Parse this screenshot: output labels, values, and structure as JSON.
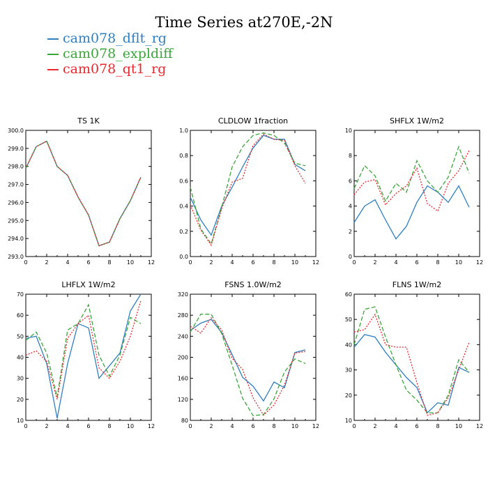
{
  "title": "Time Series at270E,-2N",
  "legend": [
    {
      "name": "cam078_dflt_rg",
      "color": "#2f7fbf",
      "dash": ""
    },
    {
      "name": "cam078_expldiff",
      "color": "#3aa63a",
      "dash": "6,3"
    },
    {
      "name": "cam078_qt1_rg",
      "color": "#e8282d",
      "dash": "2,2"
    }
  ],
  "chart_data": [
    {
      "type": "line",
      "title": "TS  1K",
      "xlim": [
        0,
        12
      ],
      "xticks": [
        0,
        2,
        4,
        6,
        8,
        10,
        12
      ],
      "ylim": [
        293,
        300
      ],
      "yticks": [
        "293.0",
        "294.0",
        "295.0",
        "296.0",
        "297.0",
        "298.0",
        "299.0",
        "300.0"
      ],
      "x": [
        0,
        1,
        2,
        3,
        4,
        5,
        6,
        7,
        8,
        9,
        10,
        11
      ],
      "series": [
        {
          "name": "cam078_dflt_rg",
          "values": [
            297.9,
            299.1,
            299.4,
            298.0,
            297.5,
            296.3,
            295.3,
            293.6,
            293.8,
            295.1,
            296.1,
            297.4
          ]
        },
        {
          "name": "cam078_expldiff",
          "values": [
            297.9,
            299.1,
            299.4,
            298.0,
            297.5,
            296.3,
            295.3,
            293.6,
            293.8,
            295.1,
            296.1,
            297.4
          ]
        },
        {
          "name": "cam078_qt1_rg",
          "values": [
            297.9,
            299.1,
            299.4,
            298.0,
            297.5,
            296.3,
            295.3,
            293.6,
            293.8,
            295.1,
            296.1,
            297.4
          ]
        }
      ]
    },
    {
      "type": "line",
      "title": "CLDLOW   1fraction",
      "xlim": [
        0,
        12
      ],
      "xticks": [
        0,
        2,
        4,
        6,
        8,
        10,
        12
      ],
      "ylim": [
        0,
        1
      ],
      "yticks": [
        "0.0",
        "0.2",
        "0.4",
        "0.6",
        "0.8",
        "1.0"
      ],
      "x": [
        0,
        1,
        2,
        3,
        4,
        5,
        6,
        7,
        8,
        9,
        10,
        11
      ],
      "series": [
        {
          "name": "cam078_dflt_rg",
          "values": [
            0.47,
            0.29,
            0.17,
            0.4,
            0.55,
            0.71,
            0.86,
            0.96,
            0.93,
            0.93,
            0.73,
            0.68
          ]
        },
        {
          "name": "cam078_expldiff",
          "values": [
            0.55,
            0.22,
            0.1,
            0.39,
            0.71,
            0.87,
            0.96,
            0.98,
            0.96,
            0.9,
            0.74,
            0.72
          ]
        },
        {
          "name": "cam078_qt1_rg",
          "values": [
            0.41,
            0.21,
            0.09,
            0.38,
            0.59,
            0.62,
            0.88,
            0.97,
            0.93,
            0.92,
            0.72,
            0.58
          ]
        }
      ]
    },
    {
      "type": "line",
      "title": "SHFLX   1W/m2",
      "xlim": [
        0,
        12
      ],
      "xticks": [
        0,
        2,
        4,
        6,
        8,
        10,
        12
      ],
      "ylim": [
        0,
        10
      ],
      "yticks": [
        "0",
        "2",
        "4",
        "6",
        "8",
        "10"
      ],
      "x": [
        0,
        1,
        2,
        3,
        4,
        5,
        6,
        7,
        8,
        9,
        10,
        11
      ],
      "series": [
        {
          "name": "cam078_dflt_rg",
          "values": [
            2.7,
            4.0,
            4.5,
            2.9,
            1.4,
            2.4,
            4.3,
            5.6,
            5.1,
            4.3,
            5.6,
            3.9
          ]
        },
        {
          "name": "cam078_expldiff",
          "values": [
            5.4,
            7.2,
            6.4,
            4.4,
            5.8,
            5.1,
            7.6,
            6.0,
            5.1,
            6.3,
            8.7,
            6.6
          ]
        },
        {
          "name": "cam078_qt1_rg",
          "values": [
            4.9,
            5.9,
            6.1,
            4.1,
            5.0,
            5.6,
            7.0,
            4.2,
            3.6,
            5.8,
            6.8,
            8.4
          ]
        }
      ]
    },
    {
      "type": "line",
      "title": "LHFLX   1W/m2",
      "xlim": [
        0,
        12
      ],
      "xticks": [
        0,
        2,
        4,
        6,
        8,
        10,
        12
      ],
      "ylim": [
        10,
        70
      ],
      "yticks": [
        "10",
        "20",
        "30",
        "40",
        "50",
        "60",
        "70"
      ],
      "x": [
        0,
        1,
        2,
        3,
        4,
        5,
        6,
        7,
        8,
        9,
        10,
        11
      ],
      "series": [
        {
          "name": "cam078_dflt_rg",
          "values": [
            49,
            50,
            37,
            11,
            37,
            56,
            54,
            30,
            36,
            42,
            62,
            70
          ]
        },
        {
          "name": "cam078_expldiff",
          "values": [
            48,
            52,
            42,
            21,
            53,
            56,
            65,
            41,
            31,
            41,
            59,
            56
          ]
        },
        {
          "name": "cam078_qt1_rg",
          "values": [
            41,
            43,
            38,
            20,
            49,
            56,
            60,
            35,
            30,
            38,
            50,
            67
          ]
        }
      ]
    },
    {
      "type": "line",
      "title": "FSNS   1.0W/m2",
      "xlim": [
        0,
        12
      ],
      "xticks": [
        0,
        2,
        4,
        6,
        8,
        10,
        12
      ],
      "ylim": [
        80,
        320
      ],
      "yticks": [
        "80",
        "120",
        "160",
        "200",
        "240",
        "280",
        "320"
      ],
      "x": [
        0,
        1,
        2,
        3,
        4,
        5,
        6,
        7,
        8,
        9,
        10,
        11
      ],
      "series": [
        {
          "name": "cam078_dflt_rg",
          "values": [
            251,
            265,
            272,
            247,
            205,
            162,
            145,
            117,
            153,
            142,
            209,
            214
          ]
        },
        {
          "name": "cam078_expldiff",
          "values": [
            248,
            282,
            282,
            245,
            185,
            122,
            89,
            91,
            121,
            172,
            197,
            188
          ]
        },
        {
          "name": "cam078_qt1_rg",
          "values": [
            259,
            246,
            275,
            252,
            198,
            177,
            123,
            90,
            109,
            147,
            208,
            211
          ]
        }
      ]
    },
    {
      "type": "line",
      "title": "FLNS   1W/m2",
      "xlim": [
        0,
        12
      ],
      "xticks": [
        0,
        2,
        4,
        6,
        8,
        10,
        12
      ],
      "ylim": [
        10,
        60
      ],
      "yticks": [
        "10",
        "20",
        "30",
        "40",
        "50",
        "60"
      ],
      "x": [
        0,
        1,
        2,
        3,
        4,
        5,
        6,
        7,
        8,
        9,
        10,
        11
      ],
      "series": [
        {
          "name": "cam078_dflt_rg",
          "values": [
            39,
            44,
            43,
            37,
            32,
            27,
            23,
            13,
            17,
            16,
            31,
            29
          ]
        },
        {
          "name": "cam078_expldiff",
          "values": [
            40,
            54,
            55,
            43,
            32,
            22,
            18,
            13,
            13,
            20,
            34,
            29
          ]
        },
        {
          "name": "cam078_qt1_rg",
          "values": [
            45,
            46,
            52,
            40,
            39,
            39,
            25,
            12,
            13,
            19,
            30,
            41
          ]
        }
      ]
    }
  ]
}
